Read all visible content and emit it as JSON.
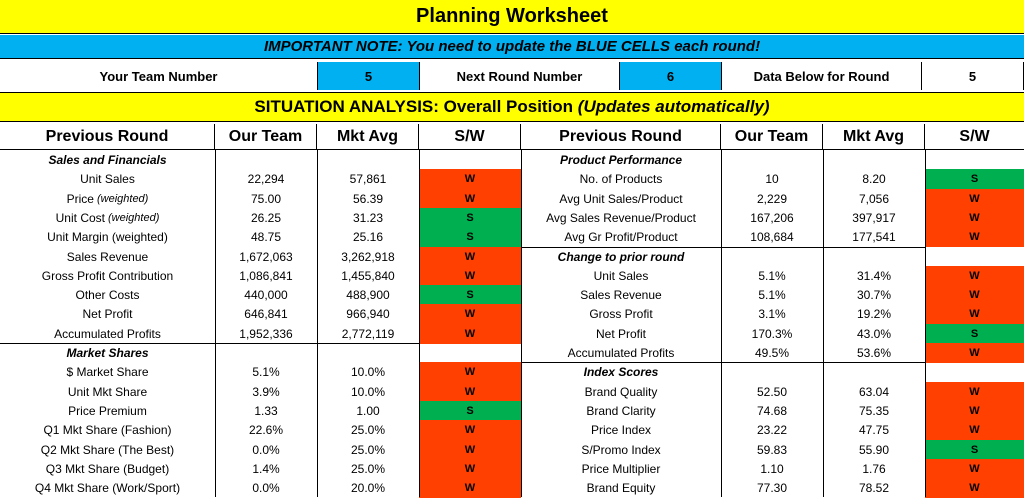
{
  "title": "Planning Worksheet",
  "note": "IMPORTANT NOTE: You need to update the BLUE CELLS each round!",
  "team_row": {
    "team_label": "Your Team Number",
    "team_value": "5",
    "next_label": "Next Round Number",
    "next_value": "6",
    "data_label": "Data Below for Round",
    "data_value": "5"
  },
  "situation": {
    "main": "SITUATION ANALYSIS: Overall Position ",
    "italic": "(Updates automatically)"
  },
  "headers": {
    "previous_round": "Previous Round",
    "our_team": "Our Team",
    "mkt_avg": "Mkt Avg",
    "sw": "S/W"
  },
  "colors": {
    "yellow": "#ffff00",
    "blue": "#00b0f0",
    "strength": "#00b050",
    "weakness": "#ff4000"
  },
  "left_rows": [
    {
      "label": "Sales and Financials",
      "section": true
    },
    {
      "label": "Unit Sales",
      "ours": "22,294",
      "mkt": "57,861",
      "sw": "W"
    },
    {
      "label": "Price",
      "unit": "(weighted)",
      "ours": "75.00",
      "mkt": "56.39",
      "sw": "W"
    },
    {
      "label": "Unit Cost",
      "unit": "(weighted)",
      "ours": "26.25",
      "mkt": "31.23",
      "sw": "S"
    },
    {
      "label": "Unit Margin (weighted)",
      "ours": "48.75",
      "mkt": "25.16",
      "sw": "S"
    },
    {
      "label": "Sales Revenue",
      "ours": "1,672,063",
      "mkt": "3,262,918",
      "sw": "W"
    },
    {
      "label": "Gross Profit Contribution",
      "ours": "1,086,841",
      "mkt": "1,455,840",
      "sw": "W"
    },
    {
      "label": "Other Costs",
      "ours": "440,000",
      "mkt": "488,900",
      "sw": "S"
    },
    {
      "label": "Net Profit",
      "ours": "646,841",
      "mkt": "966,940",
      "sw": "W"
    },
    {
      "label": "Accumulated Profits",
      "ours": "1,952,336",
      "mkt": "2,772,119",
      "sw": "W"
    },
    {
      "label": "Market Shares",
      "section": true
    },
    {
      "label": "$ Market Share",
      "ours": "5.1%",
      "mkt": "10.0%",
      "sw": "W"
    },
    {
      "label": "Unit Mkt Share",
      "ours": "3.9%",
      "mkt": "10.0%",
      "sw": "W"
    },
    {
      "label": "Price Premium",
      "ours": "1.33",
      "mkt": "1.00",
      "sw": "S"
    },
    {
      "label": "Q1 Mkt Share (Fashion)",
      "ours": "22.6%",
      "mkt": "25.0%",
      "sw": "W"
    },
    {
      "label": "Q2 Mkt Share (The Best)",
      "ours": "0.0%",
      "mkt": "25.0%",
      "sw": "W"
    },
    {
      "label": "Q3 Mkt Share (Budget)",
      "ours": "1.4%",
      "mkt": "25.0%",
      "sw": "W"
    },
    {
      "label": "Q4 Mkt Share (Work/Sport)",
      "ours": "0.0%",
      "mkt": "20.0%",
      "sw": "W"
    }
  ],
  "right_rows": [
    {
      "label": "Product Performance",
      "section": true
    },
    {
      "label": "No. of Products",
      "ours": "10",
      "mkt": "8.20",
      "sw": "S"
    },
    {
      "label": "Avg Unit Sales/Product",
      "ours": "2,229",
      "mkt": "7,056",
      "sw": "W"
    },
    {
      "label": "Avg Sales Revenue/Product",
      "ours": "167,206",
      "mkt": "397,917",
      "sw": "W"
    },
    {
      "label": "Avg Gr Profit/Product",
      "ours": "108,684",
      "mkt": "177,541",
      "sw": "W"
    },
    {
      "label": "Change to prior round",
      "section": true
    },
    {
      "label": "Unit Sales",
      "ours": "5.1%",
      "mkt": "31.4%",
      "sw": "W"
    },
    {
      "label": "Sales Revenue",
      "ours": "5.1%",
      "mkt": "30.7%",
      "sw": "W"
    },
    {
      "label": "Gross Profit",
      "ours": "3.1%",
      "mkt": "19.2%",
      "sw": "W"
    },
    {
      "label": "Net Profit",
      "ours": "170.3%",
      "mkt": "43.0%",
      "sw": "S"
    },
    {
      "label": "Accumulated Profits",
      "ours": "49.5%",
      "mkt": "53.6%",
      "sw": "W"
    },
    {
      "label": "Index Scores",
      "section": true
    },
    {
      "label": "Brand Quality",
      "ours": "52.50",
      "mkt": "63.04",
      "sw": "W"
    },
    {
      "label": "Brand Clarity",
      "ours": "74.68",
      "mkt": "75.35",
      "sw": "W"
    },
    {
      "label": "Price Index",
      "ours": "23.22",
      "mkt": "47.75",
      "sw": "W"
    },
    {
      "label": "S/Promo Index",
      "ours": "59.83",
      "mkt": "55.90",
      "sw": "S"
    },
    {
      "label": "Price Multiplier",
      "ours": "1.10",
      "mkt": "1.76",
      "sw": "W"
    },
    {
      "label": "Brand Equity",
      "ours": "77.30",
      "mkt": "78.52",
      "sw": "W"
    }
  ]
}
